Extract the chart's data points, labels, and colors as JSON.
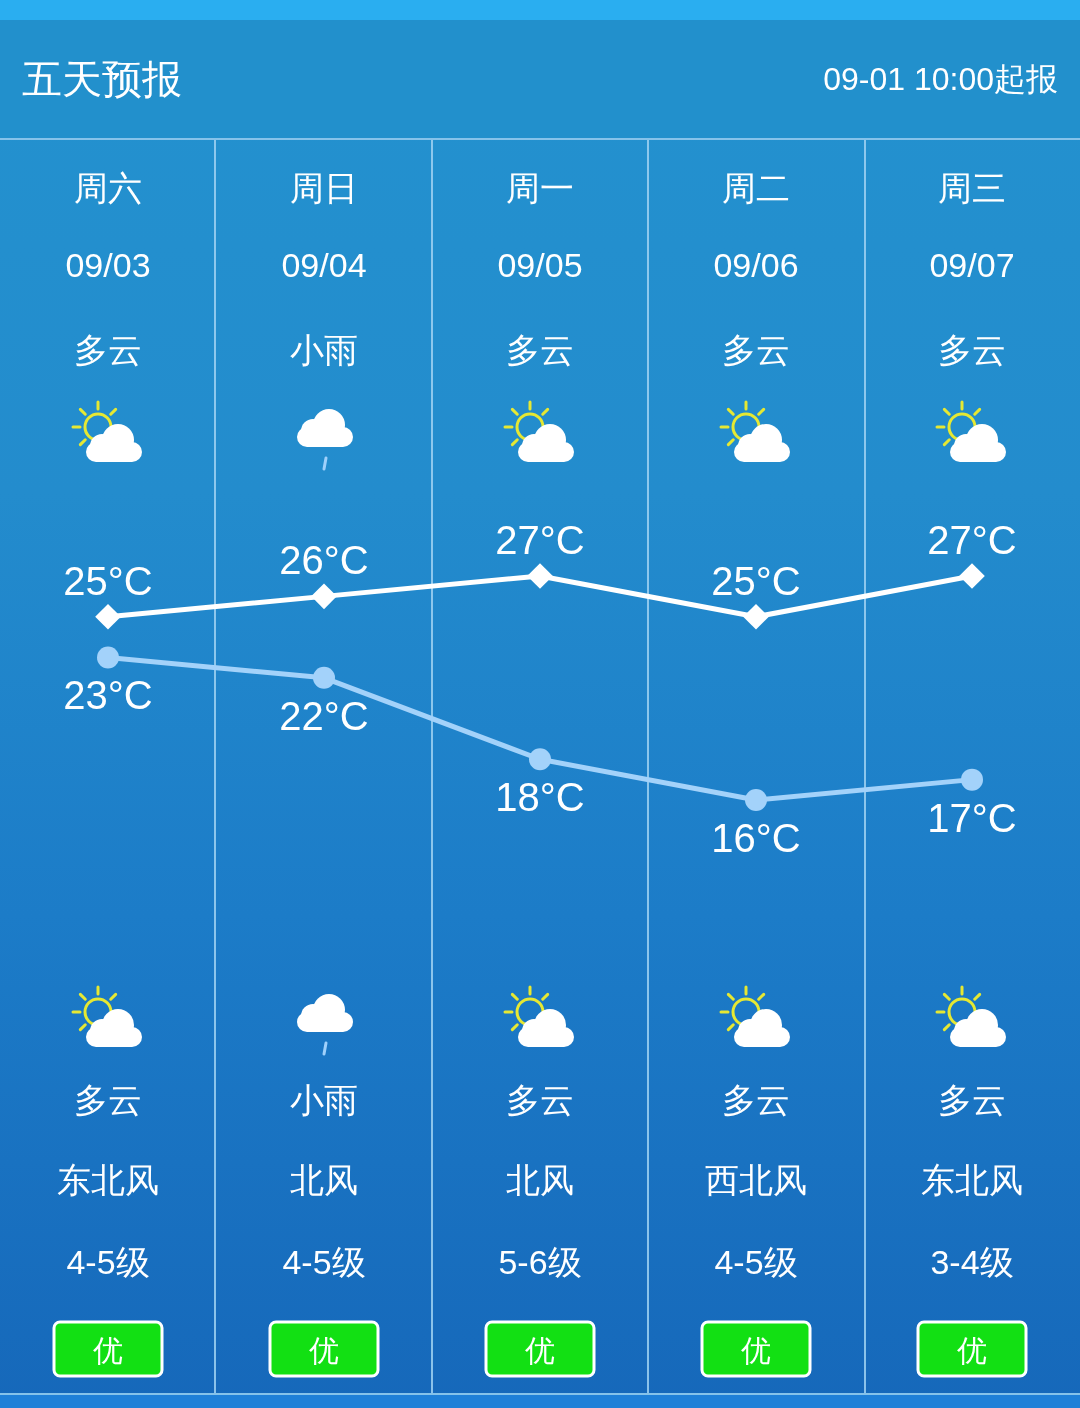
{
  "chart_data": {
    "type": "line",
    "title": "五天预报",
    "subtitle": "09-01 10:00起报",
    "categories": [
      "周六\n09/03",
      "周日\n09/04",
      "周一\n09/05",
      "周二\n09/06",
      "周三\n09/07"
    ],
    "series": [
      {
        "color": "#ffffff",
        "marker": "diamond",
        "values": [
          25,
          26,
          27,
          25,
          27
        ],
        "value_labels": [
          "25°C",
          "26°C",
          "27°C",
          "25°C",
          "27°C"
        ]
      },
      {
        "color": "#a3d2fa",
        "marker": "circle",
        "values": [
          23,
          22,
          18,
          16,
          17
        ],
        "value_labels": [
          "23°C",
          "22°C",
          "18°C",
          "16°C",
          "17°C"
        ]
      }
    ],
    "annotations": [
      "多云",
      "小雨",
      "多云",
      "多云",
      "多云",
      "多云",
      "小雨",
      "多云",
      "多云",
      "多云",
      "东北风",
      "北风",
      "北风",
      "西北风",
      "东北风",
      "4-5级",
      "4-5级",
      "5-6级",
      "4-5级",
      "3-4级",
      "优",
      "优",
      "优",
      "优",
      "优"
    ]
  }
}
